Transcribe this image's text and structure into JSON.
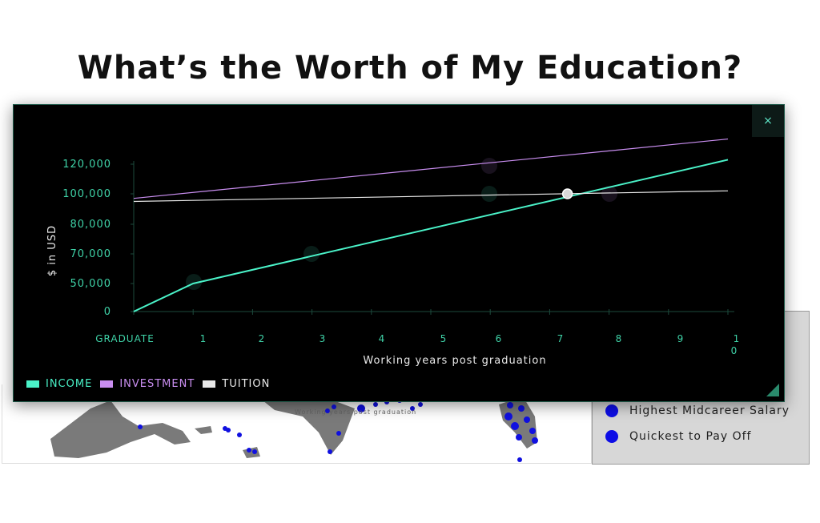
{
  "page": {
    "title": "What’s the Worth of My Education?"
  },
  "map": {
    "caption": "Working years post graduation"
  },
  "legend_panel": {
    "items": [
      {
        "label": "Highest Midcareer Salary",
        "color": "#0d0de6"
      },
      {
        "label": "Quickest to Pay Off",
        "color": "#0d0de6"
      }
    ]
  },
  "modal": {
    "close_label": "×"
  },
  "chart_data": {
    "type": "line",
    "x_ticks": [
      "GRADUATE",
      "1",
      "2",
      "3",
      "4",
      "5",
      "6",
      "7",
      "8",
      "9",
      "10"
    ],
    "y_ticks": [
      "0",
      "50,000",
      "70,000",
      "80,000",
      "100,000",
      "120,000"
    ],
    "ylabel": "$ in USD",
    "xlabel": "Working years post graduation",
    "series": [
      {
        "name": "INCOME",
        "color": "#4af2c8",
        "x": [
          0,
          1,
          10
        ],
        "y": [
          0,
          50000,
          123000
        ]
      },
      {
        "name": "INVESTMENT",
        "color": "#c98ef0",
        "x": [
          0,
          10
        ],
        "y": [
          97000,
          137000
        ]
      },
      {
        "name": "TUITION",
        "color": "#e8e8e8",
        "x": [
          0,
          10
        ],
        "y": [
          95000,
          102000
        ]
      }
    ],
    "intersection": {
      "x": 7.3,
      "y": 100000
    },
    "legend_position": "bottom-left",
    "grid": false
  }
}
